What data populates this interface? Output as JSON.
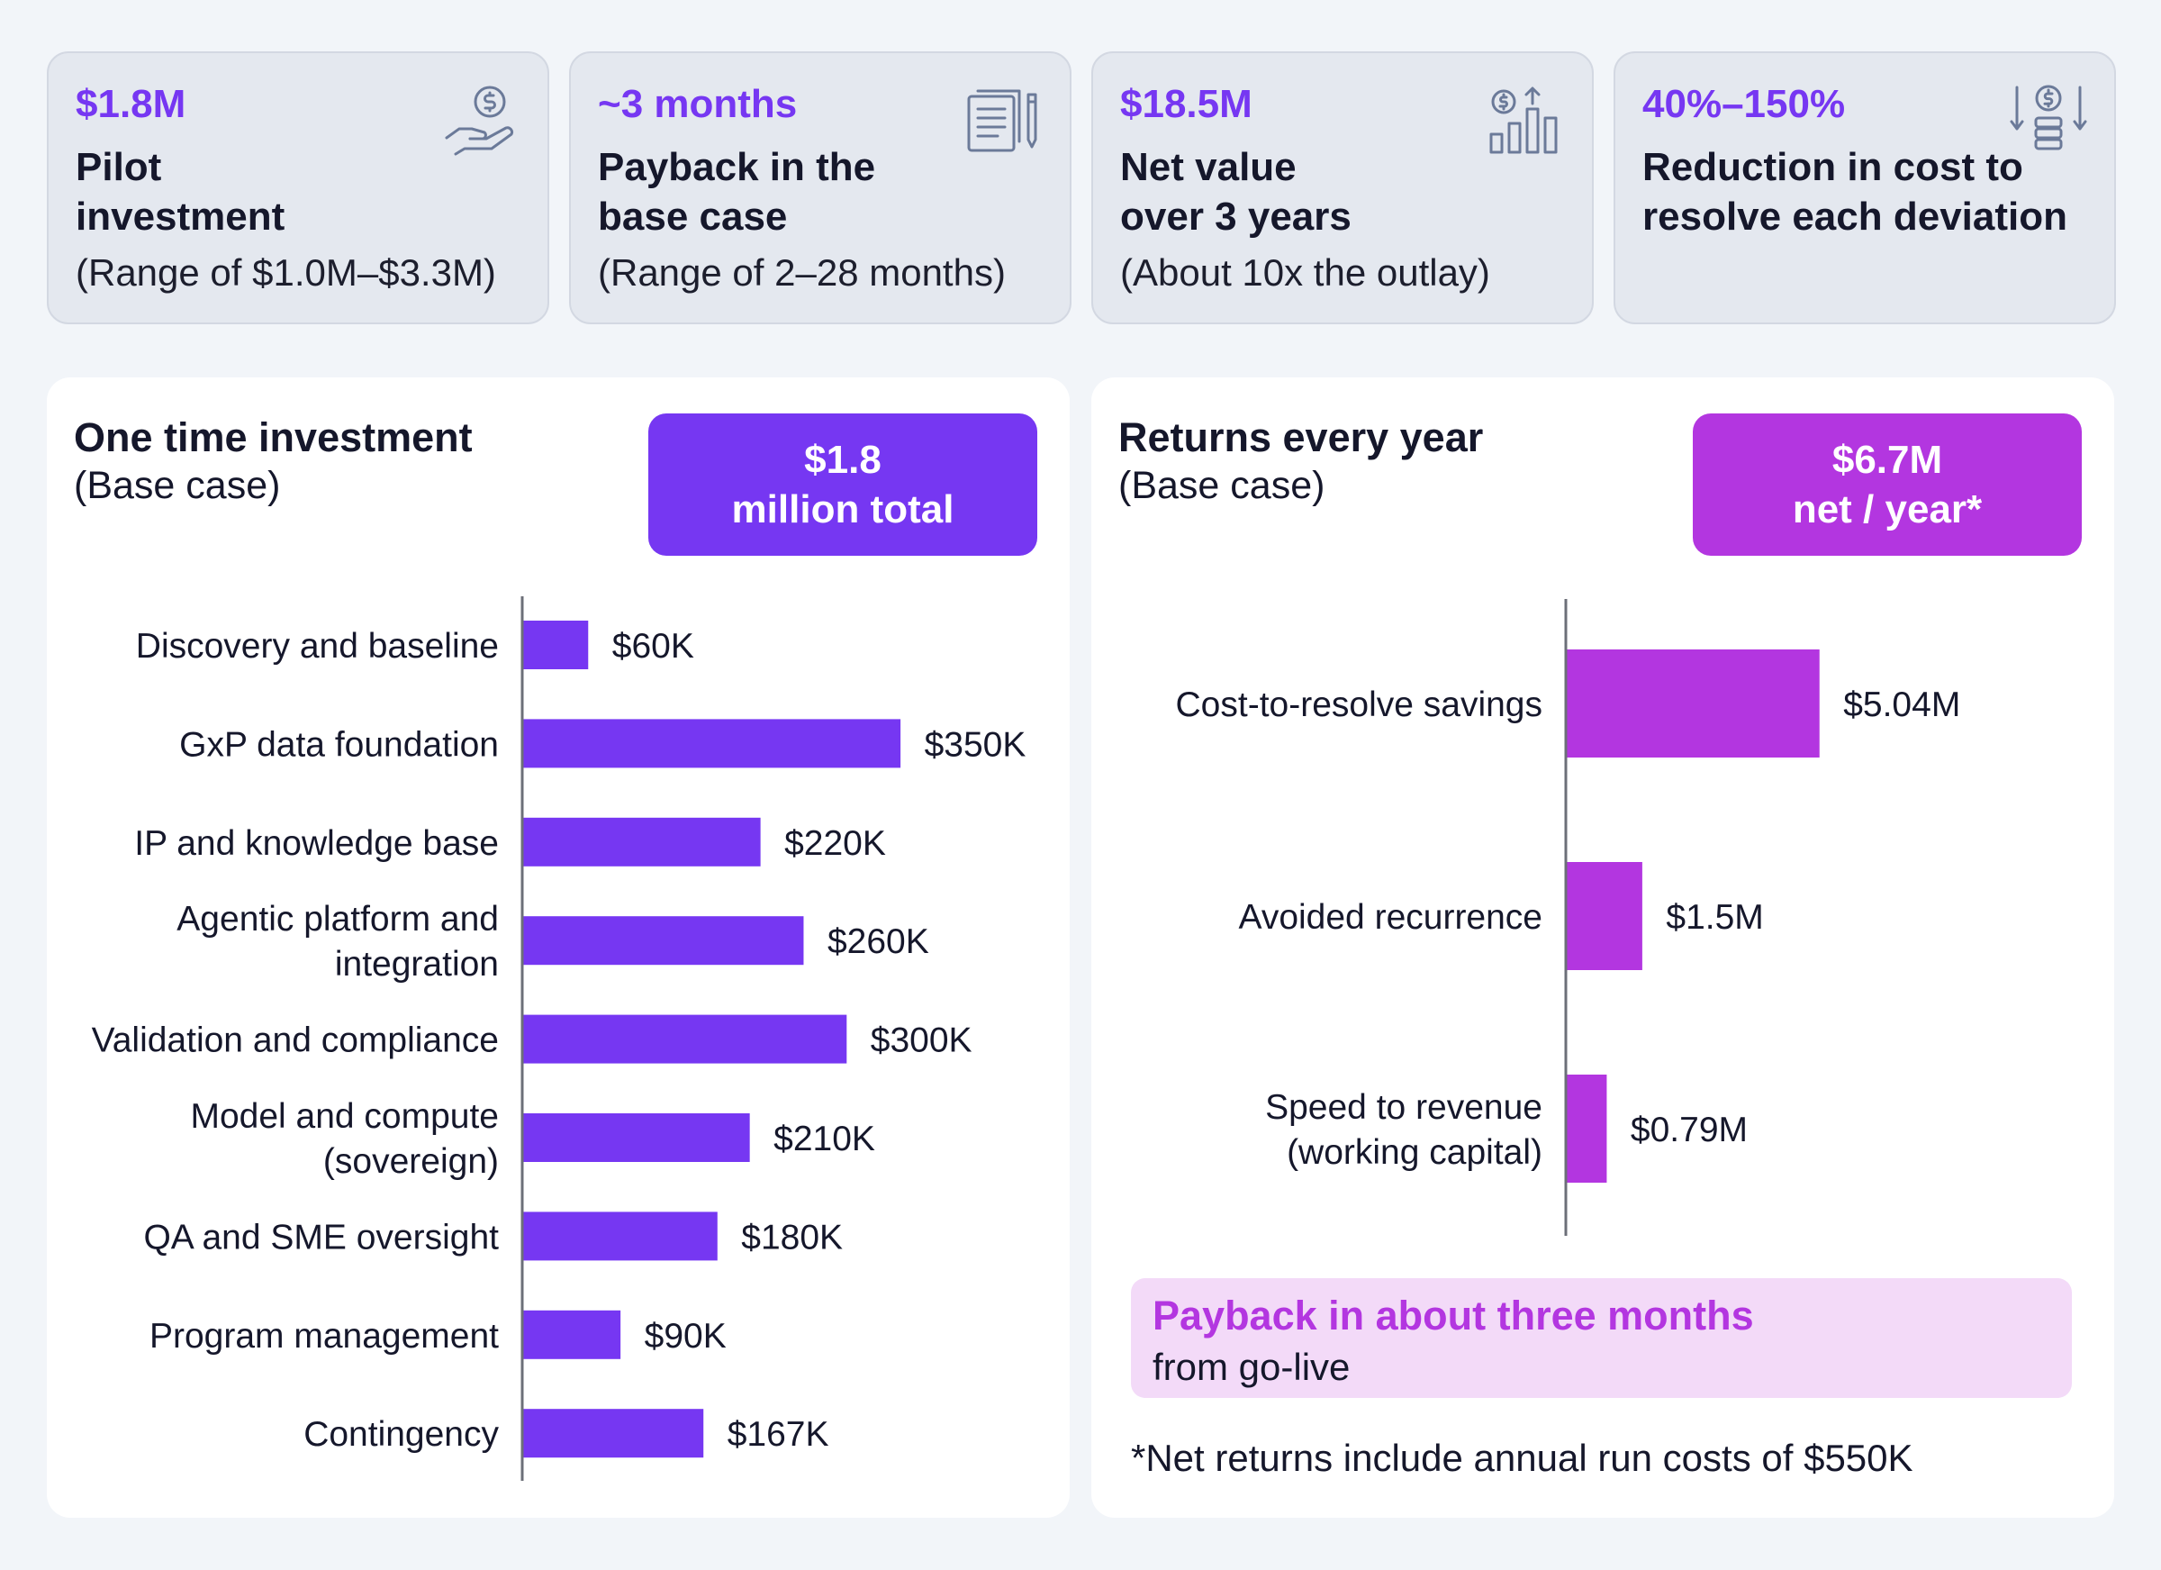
{
  "colors": {
    "purple": "#7637f2",
    "magenta": "#b336e0",
    "ink": "#15172b"
  },
  "kpis": [
    {
      "value": "$1.8M",
      "label_lines": [
        "Pilot",
        "investment"
      ],
      "sub": "(Range of $1.0M–$3.3M)",
      "icon": "hand-dollar-icon"
    },
    {
      "value": "~3 months",
      "label_lines": [
        "Payback in the",
        "base case"
      ],
      "sub": "(Range of 2–28 months)",
      "icon": "document-pencil-icon"
    },
    {
      "value": "$18.5M",
      "label_lines": [
        "Net value",
        "over 3 years"
      ],
      "sub": "(About 10x the outlay)",
      "icon": "dollar-bar-growth-icon"
    },
    {
      "value": "40%–150%",
      "label_lines": [
        "Reduction in cost to",
        "resolve each deviation"
      ],
      "sub": "",
      "icon": "dollar-coins-down-icon"
    }
  ],
  "investment": {
    "title": "One time investment",
    "subtitle": "(Base case)",
    "total_lines": [
      "$1.8",
      "million total"
    ]
  },
  "returns": {
    "title": "Returns every year",
    "subtitle": "(Base case)",
    "total_lines": [
      "$6.7M",
      "net / year*"
    ],
    "payback_title": "Payback in about three months",
    "payback_sub": "from go-live",
    "footnote": "*Net returns include annual run costs of $550K"
  },
  "chart_data": [
    {
      "type": "bar",
      "orientation": "horizontal",
      "title": "One time investment",
      "categories": [
        [
          "Discovery and baseline"
        ],
        [
          "GxP data foundation"
        ],
        [
          "IP and knowledge base"
        ],
        [
          "Agentic platform and",
          "integration"
        ],
        [
          "Validation and compliance"
        ],
        [
          "Model and compute",
          "(sovereign)"
        ],
        [
          "QA and SME oversight"
        ],
        [
          "Program management"
        ],
        [
          "Contingency"
        ]
      ],
      "values": [
        60,
        350,
        220,
        260,
        300,
        210,
        180,
        90,
        167
      ],
      "labels": [
        "$60K",
        "$350K",
        "$220K",
        "$260K",
        "$300K",
        "$210K",
        "$180K",
        "$90K",
        "$167K"
      ],
      "unit": "K",
      "color": "#7637f2"
    },
    {
      "type": "bar",
      "orientation": "horizontal",
      "title": "Returns every year",
      "categories": [
        [
          "Cost-to-resolve savings"
        ],
        [
          "Avoided recurrence"
        ],
        [
          "Speed to revenue",
          "(working capital)"
        ]
      ],
      "values": [
        5.04,
        1.5,
        0.79
      ],
      "labels": [
        "$5.04M",
        "$1.5M",
        "$0.79M"
      ],
      "unit": "M",
      "color": "#b336e0"
    }
  ]
}
